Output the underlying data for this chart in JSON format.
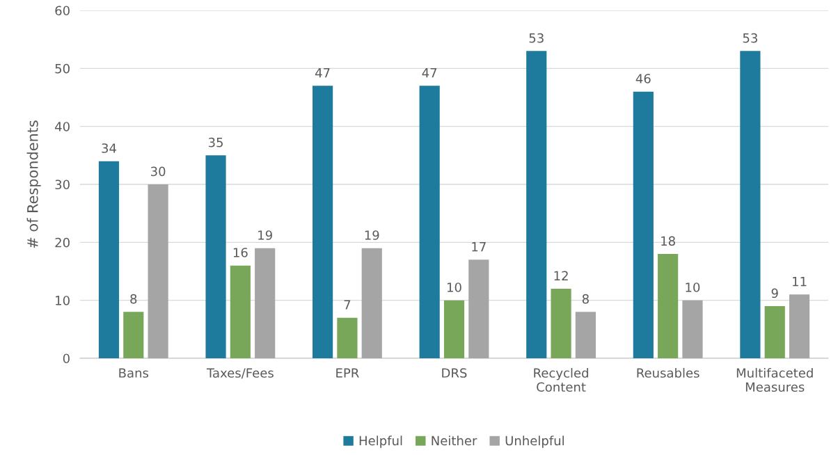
{
  "chart_data": {
    "type": "bar",
    "ylabel": "# of Respondents",
    "categories": [
      "Bans",
      "Taxes/Fees",
      "EPR",
      "DRS",
      "Recycled Content",
      "Reusables",
      "Multifaceted Measures"
    ],
    "series": [
      {
        "name": "Helpful",
        "color": "#1f7b9d",
        "values": [
          34,
          35,
          47,
          47,
          53,
          46,
          53
        ]
      },
      {
        "name": "Neither",
        "color": "#78a75a",
        "values": [
          8,
          16,
          7,
          10,
          12,
          18,
          9
        ]
      },
      {
        "name": "Unhelpful",
        "color": "#a5a5a5",
        "values": [
          30,
          19,
          19,
          17,
          8,
          10,
          11
        ]
      }
    ],
    "ylim": [
      0,
      60
    ],
    "yticks": [
      0,
      10,
      20,
      30,
      40,
      50,
      60
    ],
    "grid": "y",
    "legend": "bottom",
    "data_labels": true
  }
}
